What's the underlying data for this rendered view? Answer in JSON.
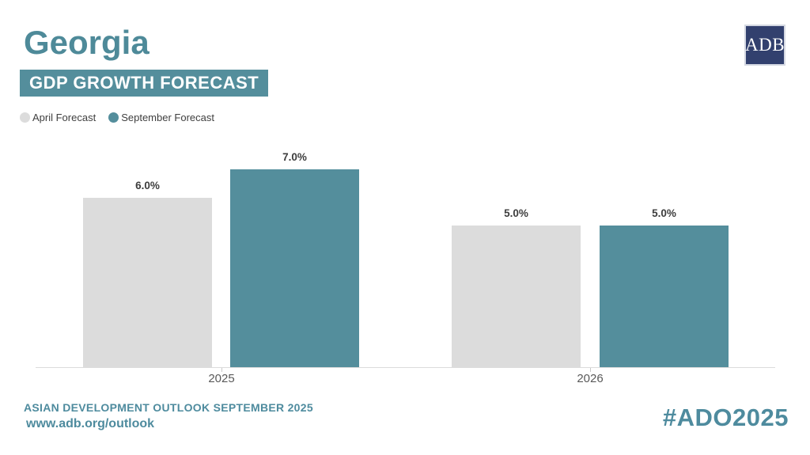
{
  "header": {
    "title": "Georgia",
    "subtitle": "GDP GROWTH FORECAST"
  },
  "logo": {
    "text": "ADB"
  },
  "chart_data": {
    "type": "bar",
    "title": "Georgia GDP Growth Forecast",
    "categories": [
      "2025",
      "2026"
    ],
    "series": [
      {
        "name": "April Forecast",
        "color": "#DCDCDC",
        "values": [
          6.0,
          5.0
        ],
        "labels": [
          "6.0%",
          "5.0%"
        ]
      },
      {
        "name": "September Forecast",
        "color": "#548E9C",
        "values": [
          7.0,
          5.0
        ],
        "labels": [
          "7.0%",
          "5.0%"
        ]
      }
    ],
    "unit": "%",
    "ylim": [
      0,
      7.5
    ],
    "grid": false,
    "legend_position": "top-left",
    "xlabel": "",
    "ylabel": ""
  },
  "footer": {
    "line1": "ASIAN DEVELOPMENT OUTLOOK SEPTEMBER 2025",
    "line2": "www.adb.org/outlook",
    "hashtag": "#ADO2025"
  },
  "colors": {
    "accent_teal": "#548E9C",
    "title_teal": "#4E8A99",
    "footer_teal": "#4E8B9E",
    "logo_navy": "#32406E",
    "bar_gray": "#DCDCDC",
    "value_label_dark": "#3D3D3D",
    "axis_gray": "#DCDCDC"
  }
}
